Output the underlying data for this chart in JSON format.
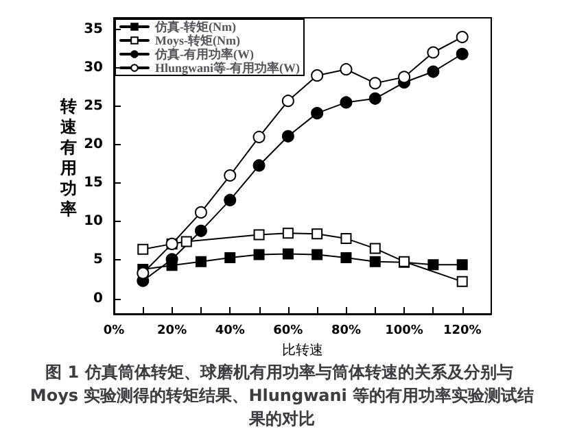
{
  "chart_data": {
    "type": "line",
    "title": "图 1 仿真筒体转矩、球磨机有用功率与筒体转速的关系及分别与 Moys 实验测得的转矩结果、Hlungwani 等的有用功率实验测试结果的对比",
    "xlabel": "比转速",
    "ylabel": "转速有用功率",
    "x": [
      10,
      20,
      30,
      40,
      50,
      60,
      70,
      80,
      90,
      100,
      110,
      120
    ],
    "series": [
      {
        "name": "仿真-转矩(Nm)",
        "color": "#000000",
        "marker": "square",
        "values": [
          3.8,
          4.3,
          4.8,
          5.3,
          5.7,
          5.8,
          5.7,
          5.3,
          4.8,
          4.7,
          4.4,
          4.4
        ]
      },
      {
        "name": "Moys-转矩(Nm)",
        "color": "#000000",
        "marker": "square",
        "x": [
          10,
          20,
          25,
          50,
          60,
          70,
          80,
          90,
          100,
          120
        ],
        "values": [
          6.4,
          7.1,
          7.4,
          8.3,
          8.5,
          8.4,
          7.8,
          6.5,
          4.8,
          2.2
        ]
      },
      {
        "name": "仿真-有用功率(W)",
        "color": "#000000",
        "marker": "circle",
        "values": [
          2.3,
          5.1,
          8.8,
          12.8,
          17.3,
          21.1,
          24.1,
          25.5,
          26.0,
          28.1,
          29.5,
          31.8
        ]
      },
      {
        "name": "Hlungwani等-有用功率(W)",
        "color": "#000000",
        "marker": "circle",
        "values": [
          3.3,
          7.1,
          11.2,
          16.0,
          21.0,
          25.7,
          29.0,
          29.8,
          28.0,
          28.8,
          32.0,
          34.0
        ]
      }
    ],
    "xlim": [
      0,
      130
    ],
    "xticks": [
      {
        "value": 0,
        "label": "0%"
      },
      {
        "value": 10,
        "label": null
      },
      {
        "value": 20,
        "label": "20%"
      },
      {
        "value": 30,
        "label": null
      },
      {
        "value": 40,
        "label": "40%"
      },
      {
        "value": 50,
        "label": null
      },
      {
        "value": 60,
        "label": "60%"
      },
      {
        "value": 70,
        "label": null
      },
      {
        "value": 80,
        "label": "80%"
      },
      {
        "value": 90,
        "label": null
      },
      {
        "value": 100,
        "label": "100%"
      },
      {
        "value": 110,
        "label": null
      },
      {
        "value": 120,
        "label": "120%"
      }
    ],
    "ylim": [
      -2,
      36.5
    ],
    "yticks": [
      0,
      5,
      10,
      15,
      20,
      25,
      30,
      35
    ],
    "grid": false,
    "legend": "top left",
    "line_style": "solid"
  }
}
